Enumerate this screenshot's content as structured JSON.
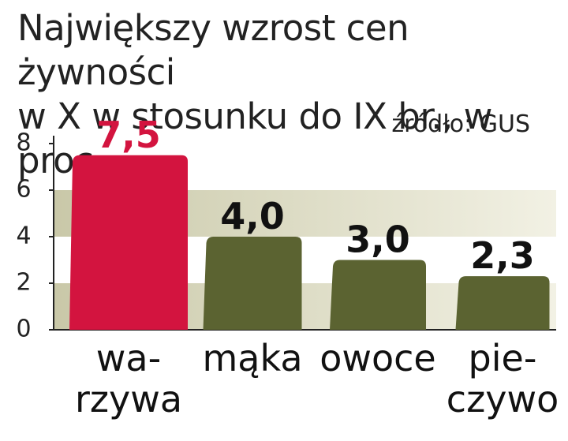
{
  "chart_data": {
    "type": "bar",
    "title": "Największy wzrost cen żywności\nw X w stosunku do IX br., w proc.",
    "source": "źródło: GUS",
    "categories": [
      "wa-\nrzywa",
      "mąka",
      "owoce",
      "pie-\nczywo"
    ],
    "values": [
      7.5,
      4.0,
      3.0,
      2.3
    ],
    "value_labels": [
      "7,5",
      "4,0",
      "3,0",
      "2,3"
    ],
    "colors": [
      "#d3143f",
      "#5b6331",
      "#5b6331",
      "#5b6331"
    ],
    "label_colors": [
      "#d3143f",
      "#111111",
      "#111111",
      "#111111"
    ],
    "ylim": [
      0,
      8
    ],
    "yticks": [
      0,
      2,
      4,
      6,
      8
    ],
    "grid": true
  }
}
